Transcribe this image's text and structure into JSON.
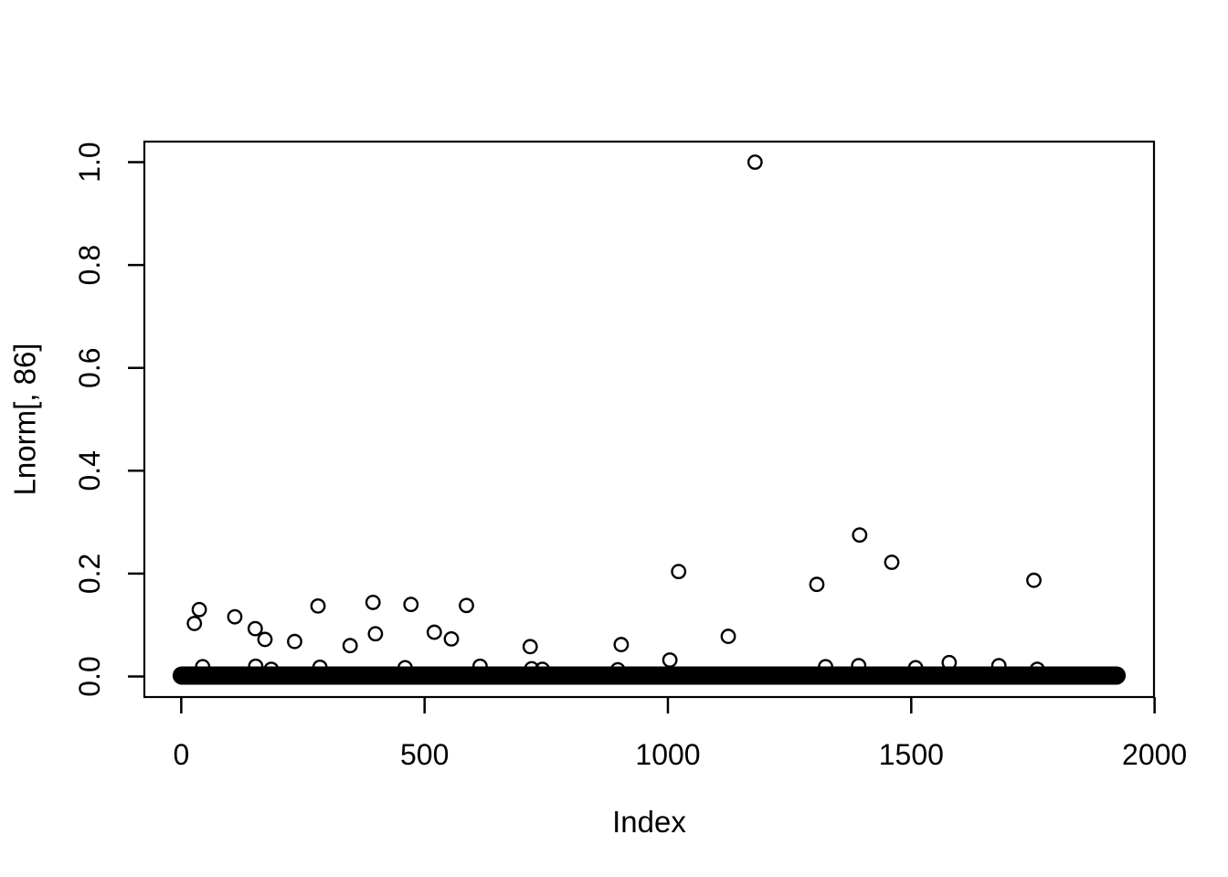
{
  "figure": {
    "background": "#ffffff",
    "foreground": "#000000"
  },
  "chart_data": {
    "type": "scatter",
    "title": "",
    "xlabel": "Index",
    "ylabel": "Lnorm[, 86]",
    "marker": "open-circle",
    "color": "#000000",
    "background": "#ffffff",
    "grid": false,
    "legend": null,
    "xlim": [
      -75.8,
      1998.8
    ],
    "ylim": [
      -0.04,
      1.04
    ],
    "x_tick_values": [
      0,
      500,
      1000,
      1500,
      2000
    ],
    "x_tick_labels": [
      "0",
      "500",
      "1000",
      "1500",
      "2000"
    ],
    "y_tick_values": [
      0.0,
      0.2,
      0.4,
      0.6,
      0.8,
      1.0
    ],
    "y_tick_labels": [
      "0.0",
      "0.2",
      "0.4",
      "0.6",
      "0.8",
      "1.0"
    ],
    "baseline_band": {
      "value": 0.0,
      "x_start": 1,
      "x_end": 1922,
      "count": 1922
    },
    "points": [
      {
        "x": 27,
        "y": 0.103
      },
      {
        "x": 37,
        "y": 0.13
      },
      {
        "x": 44,
        "y": 0.019
      },
      {
        "x": 110,
        "y": 0.116
      },
      {
        "x": 152,
        "y": 0.093
      },
      {
        "x": 153,
        "y": 0.02
      },
      {
        "x": 172,
        "y": 0.072
      },
      {
        "x": 185,
        "y": 0.014
      },
      {
        "x": 233,
        "y": 0.068
      },
      {
        "x": 281,
        "y": 0.137
      },
      {
        "x": 285,
        "y": 0.018
      },
      {
        "x": 347,
        "y": 0.06
      },
      {
        "x": 394,
        "y": 0.144
      },
      {
        "x": 399,
        "y": 0.083
      },
      {
        "x": 460,
        "y": 0.017
      },
      {
        "x": 472,
        "y": 0.14
      },
      {
        "x": 520,
        "y": 0.086
      },
      {
        "x": 555,
        "y": 0.073
      },
      {
        "x": 586,
        "y": 0.138
      },
      {
        "x": 614,
        "y": 0.02
      },
      {
        "x": 717,
        "y": 0.058
      },
      {
        "x": 720,
        "y": 0.015
      },
      {
        "x": 742,
        "y": 0.014
      },
      {
        "x": 897,
        "y": 0.013
      },
      {
        "x": 904,
        "y": 0.062
      },
      {
        "x": 1004,
        "y": 0.032
      },
      {
        "x": 1022,
        "y": 0.204
      },
      {
        "x": 1124,
        "y": 0.078
      },
      {
        "x": 1179,
        "y": 1.0
      },
      {
        "x": 1306,
        "y": 0.179
      },
      {
        "x": 1324,
        "y": 0.019
      },
      {
        "x": 1392,
        "y": 0.021
      },
      {
        "x": 1394,
        "y": 0.275
      },
      {
        "x": 1460,
        "y": 0.222
      },
      {
        "x": 1509,
        "y": 0.017
      },
      {
        "x": 1578,
        "y": 0.027
      },
      {
        "x": 1680,
        "y": 0.021
      },
      {
        "x": 1752,
        "y": 0.187
      },
      {
        "x": 1759,
        "y": 0.014
      }
    ]
  }
}
